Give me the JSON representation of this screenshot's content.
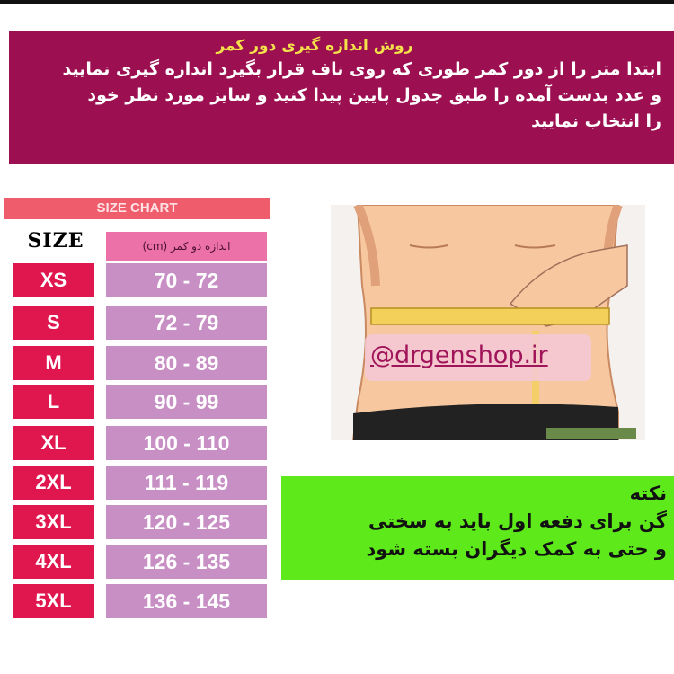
{
  "instructions": {
    "title": "روش اندازه گیری دور کمر",
    "lines": [
      "ابتدا متر را از دور کمر طوری که روی ناف قرار بگیرد اندازه گیری نمایید",
      "و عدد بدست آمده را طبق جدول پایین پیدا کنید  و سایز مورد نظر خود",
      "را انتخاب نمایید"
    ]
  },
  "size_chart": {
    "title": "SIZE CHART",
    "size_header": "SIZE",
    "waist_header": "اندازه دو کمر (cm)",
    "rows": [
      {
        "size": "XS",
        "waist": "70 - 72"
      },
      {
        "size": "S",
        "waist": "72 - 79"
      },
      {
        "size": "M",
        "waist": "80 - 89"
      },
      {
        "size": "L",
        "waist": "90 - 99"
      },
      {
        "size": "XL",
        "waist": "100 - 110"
      },
      {
        "size": "2XL",
        "waist": "111 - 119"
      },
      {
        "size": "3XL",
        "waist": "120 - 125"
      },
      {
        "size": "4XL",
        "waist": "126 - 135"
      },
      {
        "size": "5XL",
        "waist": "136 - 145"
      }
    ]
  },
  "watermark": "@drgenshop.ir",
  "note": {
    "title": "نکته",
    "lines": [
      "گن برای دفعه اول باید به سختی",
      "و حتی به کمک دیگران بسته شود"
    ]
  },
  "colors": {
    "banner": "#9c0f50",
    "banner_title": "#f3e24a",
    "chart_title": "#ef5c6c",
    "size_cell": "#e0164e",
    "waist_cell": "#c88fc5",
    "note_bg": "#5ee91b"
  }
}
